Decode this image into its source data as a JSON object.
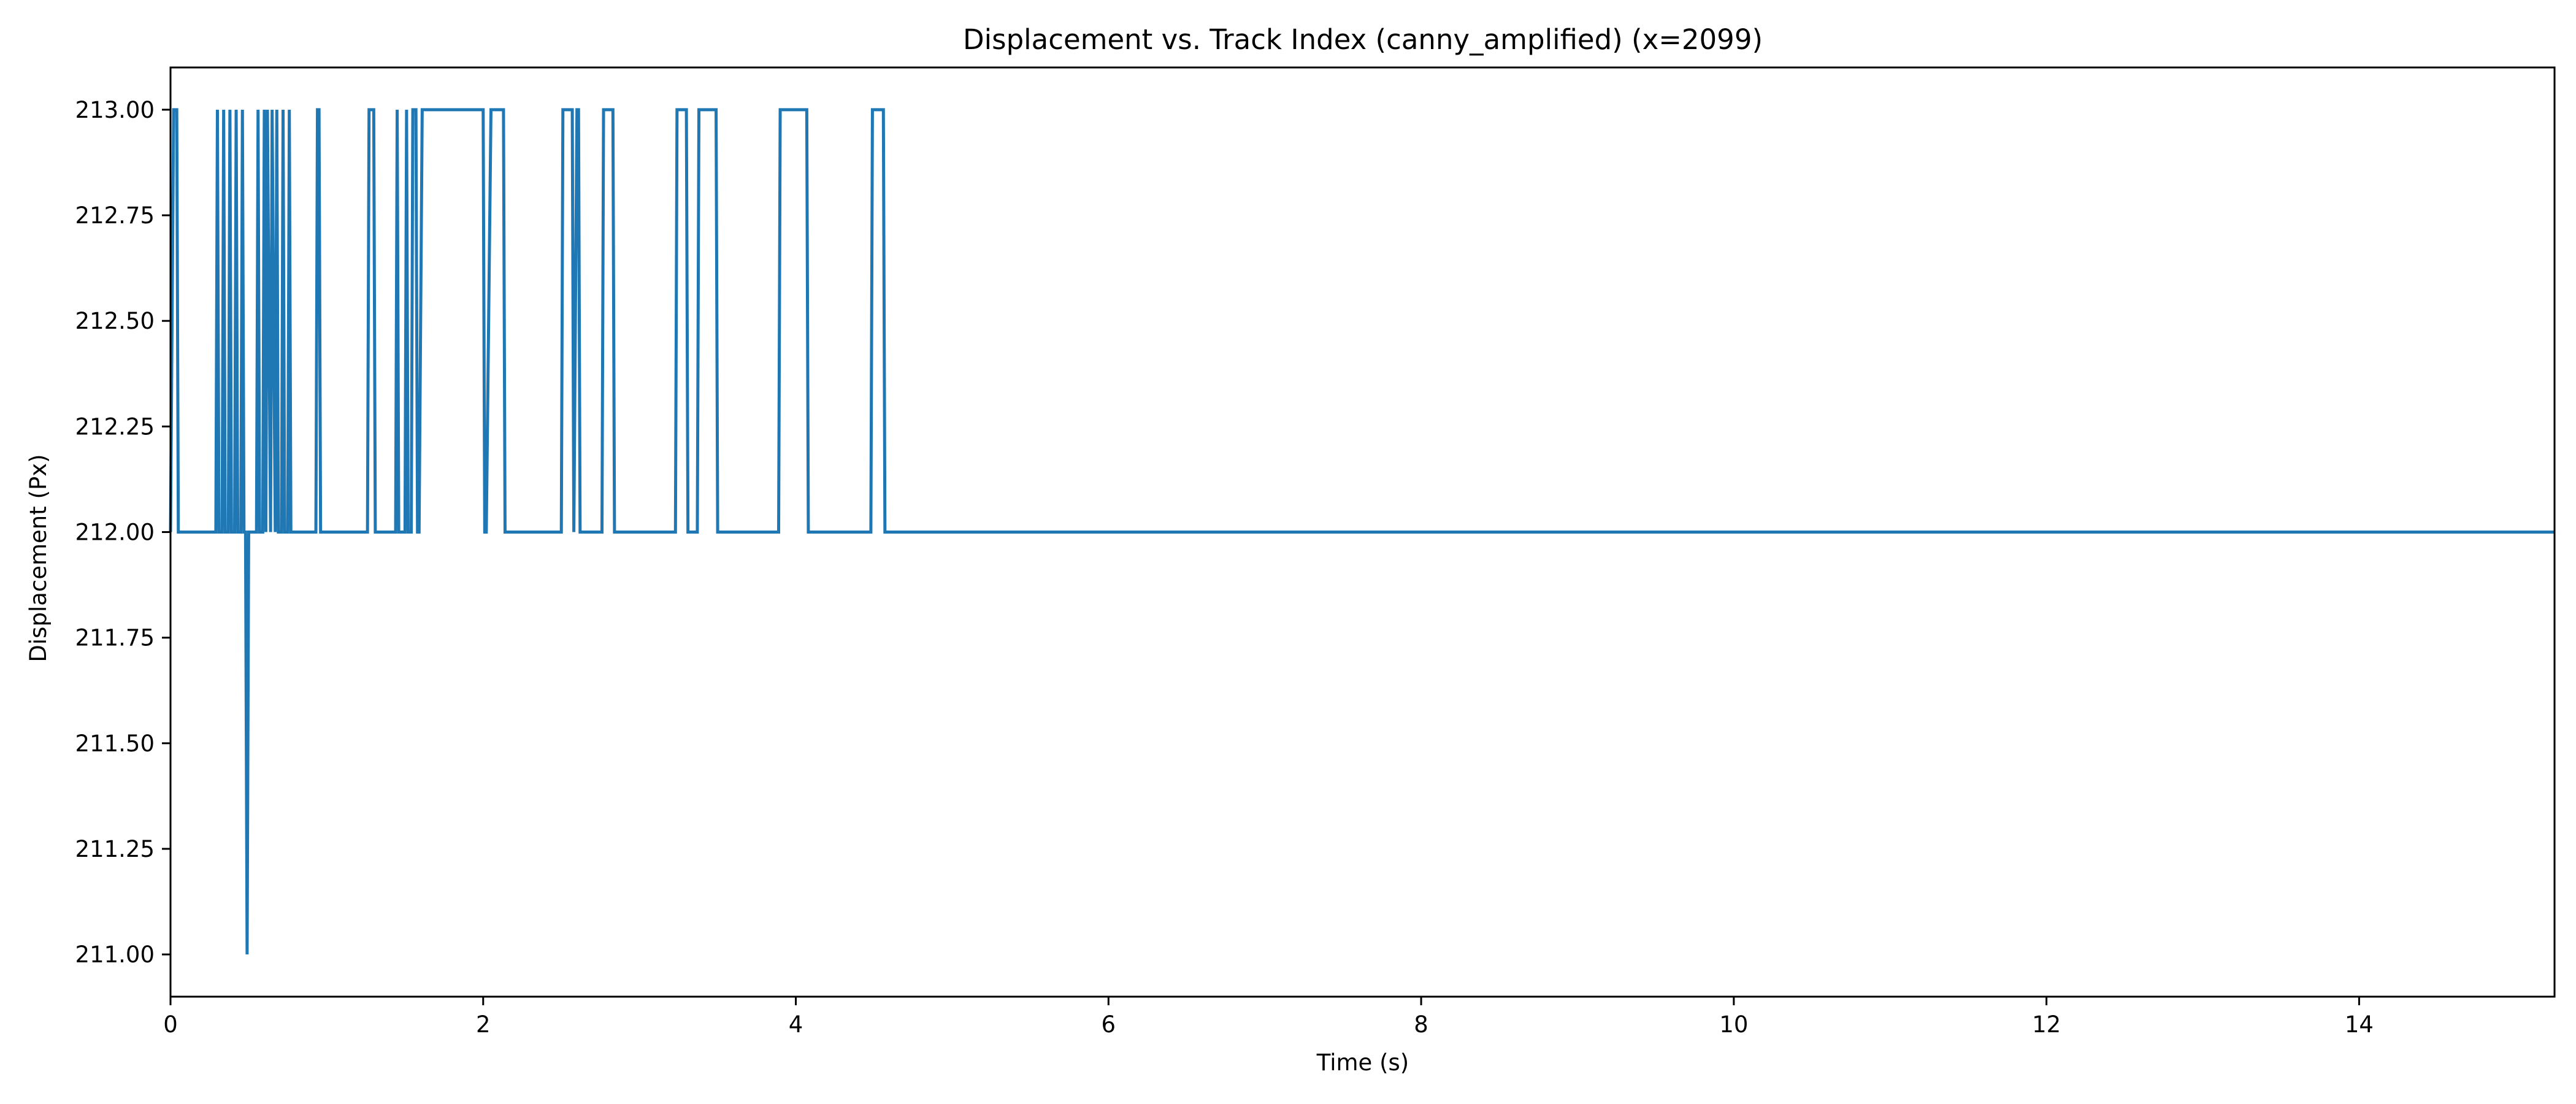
{
  "chart_data": {
    "type": "line",
    "title": "Displacement vs. Track Index (canny_amplified) (x=2099)",
    "xlabel": "Time (s)",
    "ylabel": "Displacement (Px)",
    "xlim": [
      0,
      15.25
    ],
    "ylim": [
      210.9,
      213.1
    ],
    "x_ticks": [
      0,
      2,
      4,
      6,
      8,
      10,
      12,
      14
    ],
    "x_tick_labels": [
      "0",
      "2",
      "4",
      "6",
      "8",
      "10",
      "12",
      "14"
    ],
    "y_ticks": [
      211.0,
      211.25,
      211.5,
      211.75,
      212.0,
      212.25,
      212.5,
      212.75,
      213.0
    ],
    "y_tick_labels": [
      "211.00",
      "211.25",
      "211.50",
      "211.75",
      "212.00",
      "212.25",
      "212.50",
      "212.75",
      "213.00"
    ],
    "grid": false,
    "legend": "none",
    "series": [
      {
        "color": "#1f77b4",
        "x": [
          0.0,
          0.02,
          0.04,
          0.05,
          0.29,
          0.3,
          0.31,
          0.33,
          0.34,
          0.35,
          0.37,
          0.38,
          0.39,
          0.41,
          0.42,
          0.43,
          0.45,
          0.46,
          0.47,
          0.48,
          0.49,
          0.5,
          0.55,
          0.56,
          0.57,
          0.59,
          0.6,
          0.61,
          0.62,
          0.64,
          0.65,
          0.67,
          0.68,
          0.69,
          0.71,
          0.72,
          0.73,
          0.75,
          0.76,
          0.77,
          0.79,
          0.8,
          0.82,
          0.93,
          0.94,
          0.95,
          0.96,
          1.26,
          1.27,
          1.3,
          1.31,
          1.44,
          1.45,
          1.46,
          1.5,
          1.51,
          1.52,
          1.54,
          1.55,
          1.57,
          1.58,
          1.59,
          1.61,
          1.62,
          1.63,
          2.0,
          2.01,
          2.02,
          2.05,
          2.06,
          2.13,
          2.14,
          2.5,
          2.51,
          2.57,
          2.58,
          2.6,
          2.61,
          2.62,
          2.76,
          2.77,
          2.83,
          2.84,
          3.23,
          3.24,
          3.3,
          3.31,
          3.37,
          3.38,
          3.49,
          3.5,
          3.89,
          3.9,
          4.07,
          4.08,
          4.48,
          4.49,
          4.56,
          4.57,
          15.25
        ],
        "values": [
          212,
          213,
          213,
          212,
          212,
          213,
          212,
          212,
          213,
          212,
          212,
          213,
          212,
          212,
          213,
          212,
          212,
          213,
          212,
          212,
          211,
          212,
          212,
          213,
          212,
          212,
          213,
          212,
          213,
          212,
          213,
          212,
          213,
          212,
          212,
          213,
          212,
          212,
          213,
          212,
          212,
          212,
          212,
          212,
          213,
          213,
          212,
          212,
          213,
          213,
          212,
          212,
          213,
          212,
          212,
          213,
          212,
          212,
          213,
          213,
          212,
          212,
          213,
          213,
          213,
          213,
          212,
          212,
          213,
          213,
          213,
          212,
          212,
          213,
          213,
          212,
          213,
          213,
          212,
          212,
          213,
          213,
          212,
          212,
          213,
          213,
          212,
          212,
          213,
          213,
          212,
          212,
          213,
          213,
          212,
          212,
          213,
          213,
          212,
          212
        ]
      }
    ]
  }
}
